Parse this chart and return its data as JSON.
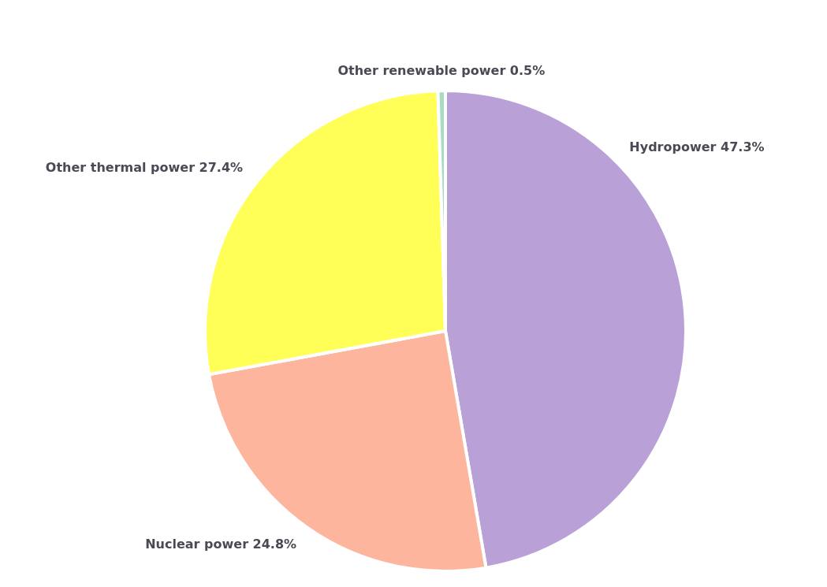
{
  "chart_data": {
    "type": "pie",
    "categories": [
      "Hydropower",
      "Nuclear power",
      "Other thermal power",
      "Other renewable power"
    ],
    "values": [
      47.3,
      24.8,
      27.4,
      0.5
    ],
    "value_labels": [
      "47.3%",
      "24.8%",
      "27.4%",
      "0.5%"
    ],
    "colors": [
      "#b9a1d8",
      "#fdb59d",
      "#ffff57",
      "#a6dcc4"
    ]
  }
}
